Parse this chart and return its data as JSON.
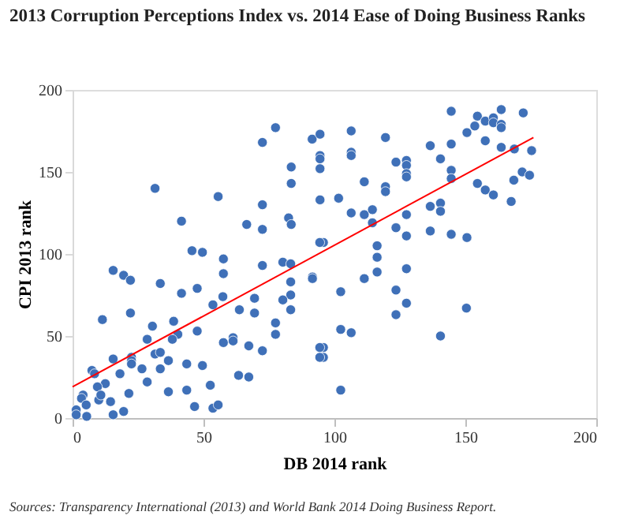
{
  "chart_data": {
    "type": "scatter",
    "title": "2013 Corruption Perceptions Index vs. 2014 Ease of Doing Business Ranks",
    "xlabel": "DB 2014 rank",
    "ylabel": "CPI 2013 rank",
    "annotations": [
      "Sources: Transparency International (2013) and World Bank 2014 Doing Business Report."
    ],
    "xlim": [
      0,
      200
    ],
    "xticks": [
      0,
      50,
      100,
      150,
      200
    ],
    "ylim": [
      0,
      200
    ],
    "yticks": [
      0,
      50,
      100,
      150,
      200
    ],
    "grid": false,
    "line_style": "solid",
    "series": [
      {
        "color": "#3f70b8",
        "marker": "circle",
        "x": [
          31.5,
          41.6,
          55.6,
          66.5,
          72.5,
          72.5,
          72.5,
          77.5,
          83.5,
          83.5,
          82.5,
          83.5,
          91.5,
          94.5,
          94.5,
          94.5,
          94.5,
          94.5,
          101.6,
          106.4,
          106.4,
          106.4,
          119.5,
          111.4,
          119.5,
          119.5,
          123.5,
          127.5,
          127.5,
          127.5,
          127.5,
          136.6,
          140.5,
          144.6,
          144.6,
          144.6,
          144.6,
          150.6,
          154.6,
          153.6,
          157.6,
          160.7,
          160.7,
          163.7,
          163.7,
          163.7,
          157.6,
          163.7,
          168.7,
          172.1,
          175.3,
          171.7,
          174.5,
          168.5,
          154.6,
          157.6,
          160.7,
          167.5,
          106.4,
          111.4,
          114.5,
          114.5,
          123.5,
          127.5,
          127.5,
          136.6,
          140.5,
          140.5,
          136.6,
          144.6,
          150.6,
          95.8,
          116.3,
          116.3,
          116.3,
          111.4,
          127.5,
          102.4,
          123.5,
          127.5,
          123.5,
          150.4,
          102.4,
          106.4,
          140.5,
          95.8,
          95.8,
          102.4,
          94.4,
          45.6,
          49.6,
          57.6,
          57.6,
          72.5,
          80.3,
          83.3,
          83.3,
          83.3,
          83.3,
          91.6,
          91.6,
          15.5,
          19.5,
          22.1,
          33.5,
          41.6,
          47.6,
          57.4,
          53.6,
          63.7,
          69.5,
          69.5,
          80.3,
          11.4,
          22.1,
          38.6,
          40.2,
          38.1,
          30.5,
          28.5,
          47.6,
          77.5,
          77.5,
          57.6,
          61.3,
          61.3,
          67.3,
          72.5,
          94.4,
          94.4,
          22.5,
          22.5,
          22.5,
          15.5,
          18.1,
          7.4,
          8.4,
          12.5,
          9.5,
          26.5,
          28.5,
          31.5,
          33.5,
          36.6,
          33.5,
          43.6,
          49.6,
          52.6,
          36.6,
          43.6,
          63.4,
          67.3,
          46.6,
          53.6,
          55.6,
          21.5,
          19.5,
          15.5,
          4.0,
          3.4,
          5.2,
          1.4,
          1.4,
          5.4,
          10.0,
          10.8,
          14.5
        ],
        "values": [
          140,
          120,
          135,
          118,
          115,
          130,
          168,
          177,
          153,
          143,
          122,
          118,
          170,
          173,
          160,
          158,
          152,
          133,
          134,
          175,
          162,
          160,
          171,
          144,
          141,
          138,
          156,
          157,
          154,
          149,
          147,
          166,
          158,
          187,
          167,
          151,
          146,
          174,
          184,
          178,
          181,
          183,
          180,
          188,
          179,
          177,
          169,
          165,
          164,
          186,
          163,
          150,
          148,
          145,
          143,
          139,
          136,
          132,
          125,
          124,
          127,
          119,
          116,
          124,
          111,
          129,
          131,
          126,
          114,
          112,
          110,
          107,
          105,
          98,
          89,
          85,
          91,
          77,
          78,
          70,
          63,
          67,
          54,
          52,
          50,
          43,
          37,
          17,
          107,
          102,
          101,
          97,
          88,
          93,
          95,
          94,
          83,
          75,
          66,
          86,
          85,
          90,
          87,
          84,
          82,
          76,
          79,
          74,
          69,
          66,
          64,
          73,
          72,
          60,
          64,
          59,
          51,
          48,
          56,
          48,
          53,
          58,
          51,
          46,
          49,
          47,
          44,
          41,
          43,
          37,
          37,
          35,
          33,
          36,
          27,
          29,
          27,
          21,
          19,
          30,
          22,
          39,
          40,
          35,
          30,
          33,
          32,
          20,
          16,
          17,
          26,
          25,
          7,
          6,
          8,
          15,
          4,
          2,
          14,
          12,
          8,
          5,
          2,
          1,
          11,
          14,
          10
        ]
      },
      {
        "type": "line",
        "marker": "none",
        "color": "#ff0000",
        "x": [
          0,
          176
        ],
        "values": [
          19,
          171
        ]
      }
    ]
  }
}
